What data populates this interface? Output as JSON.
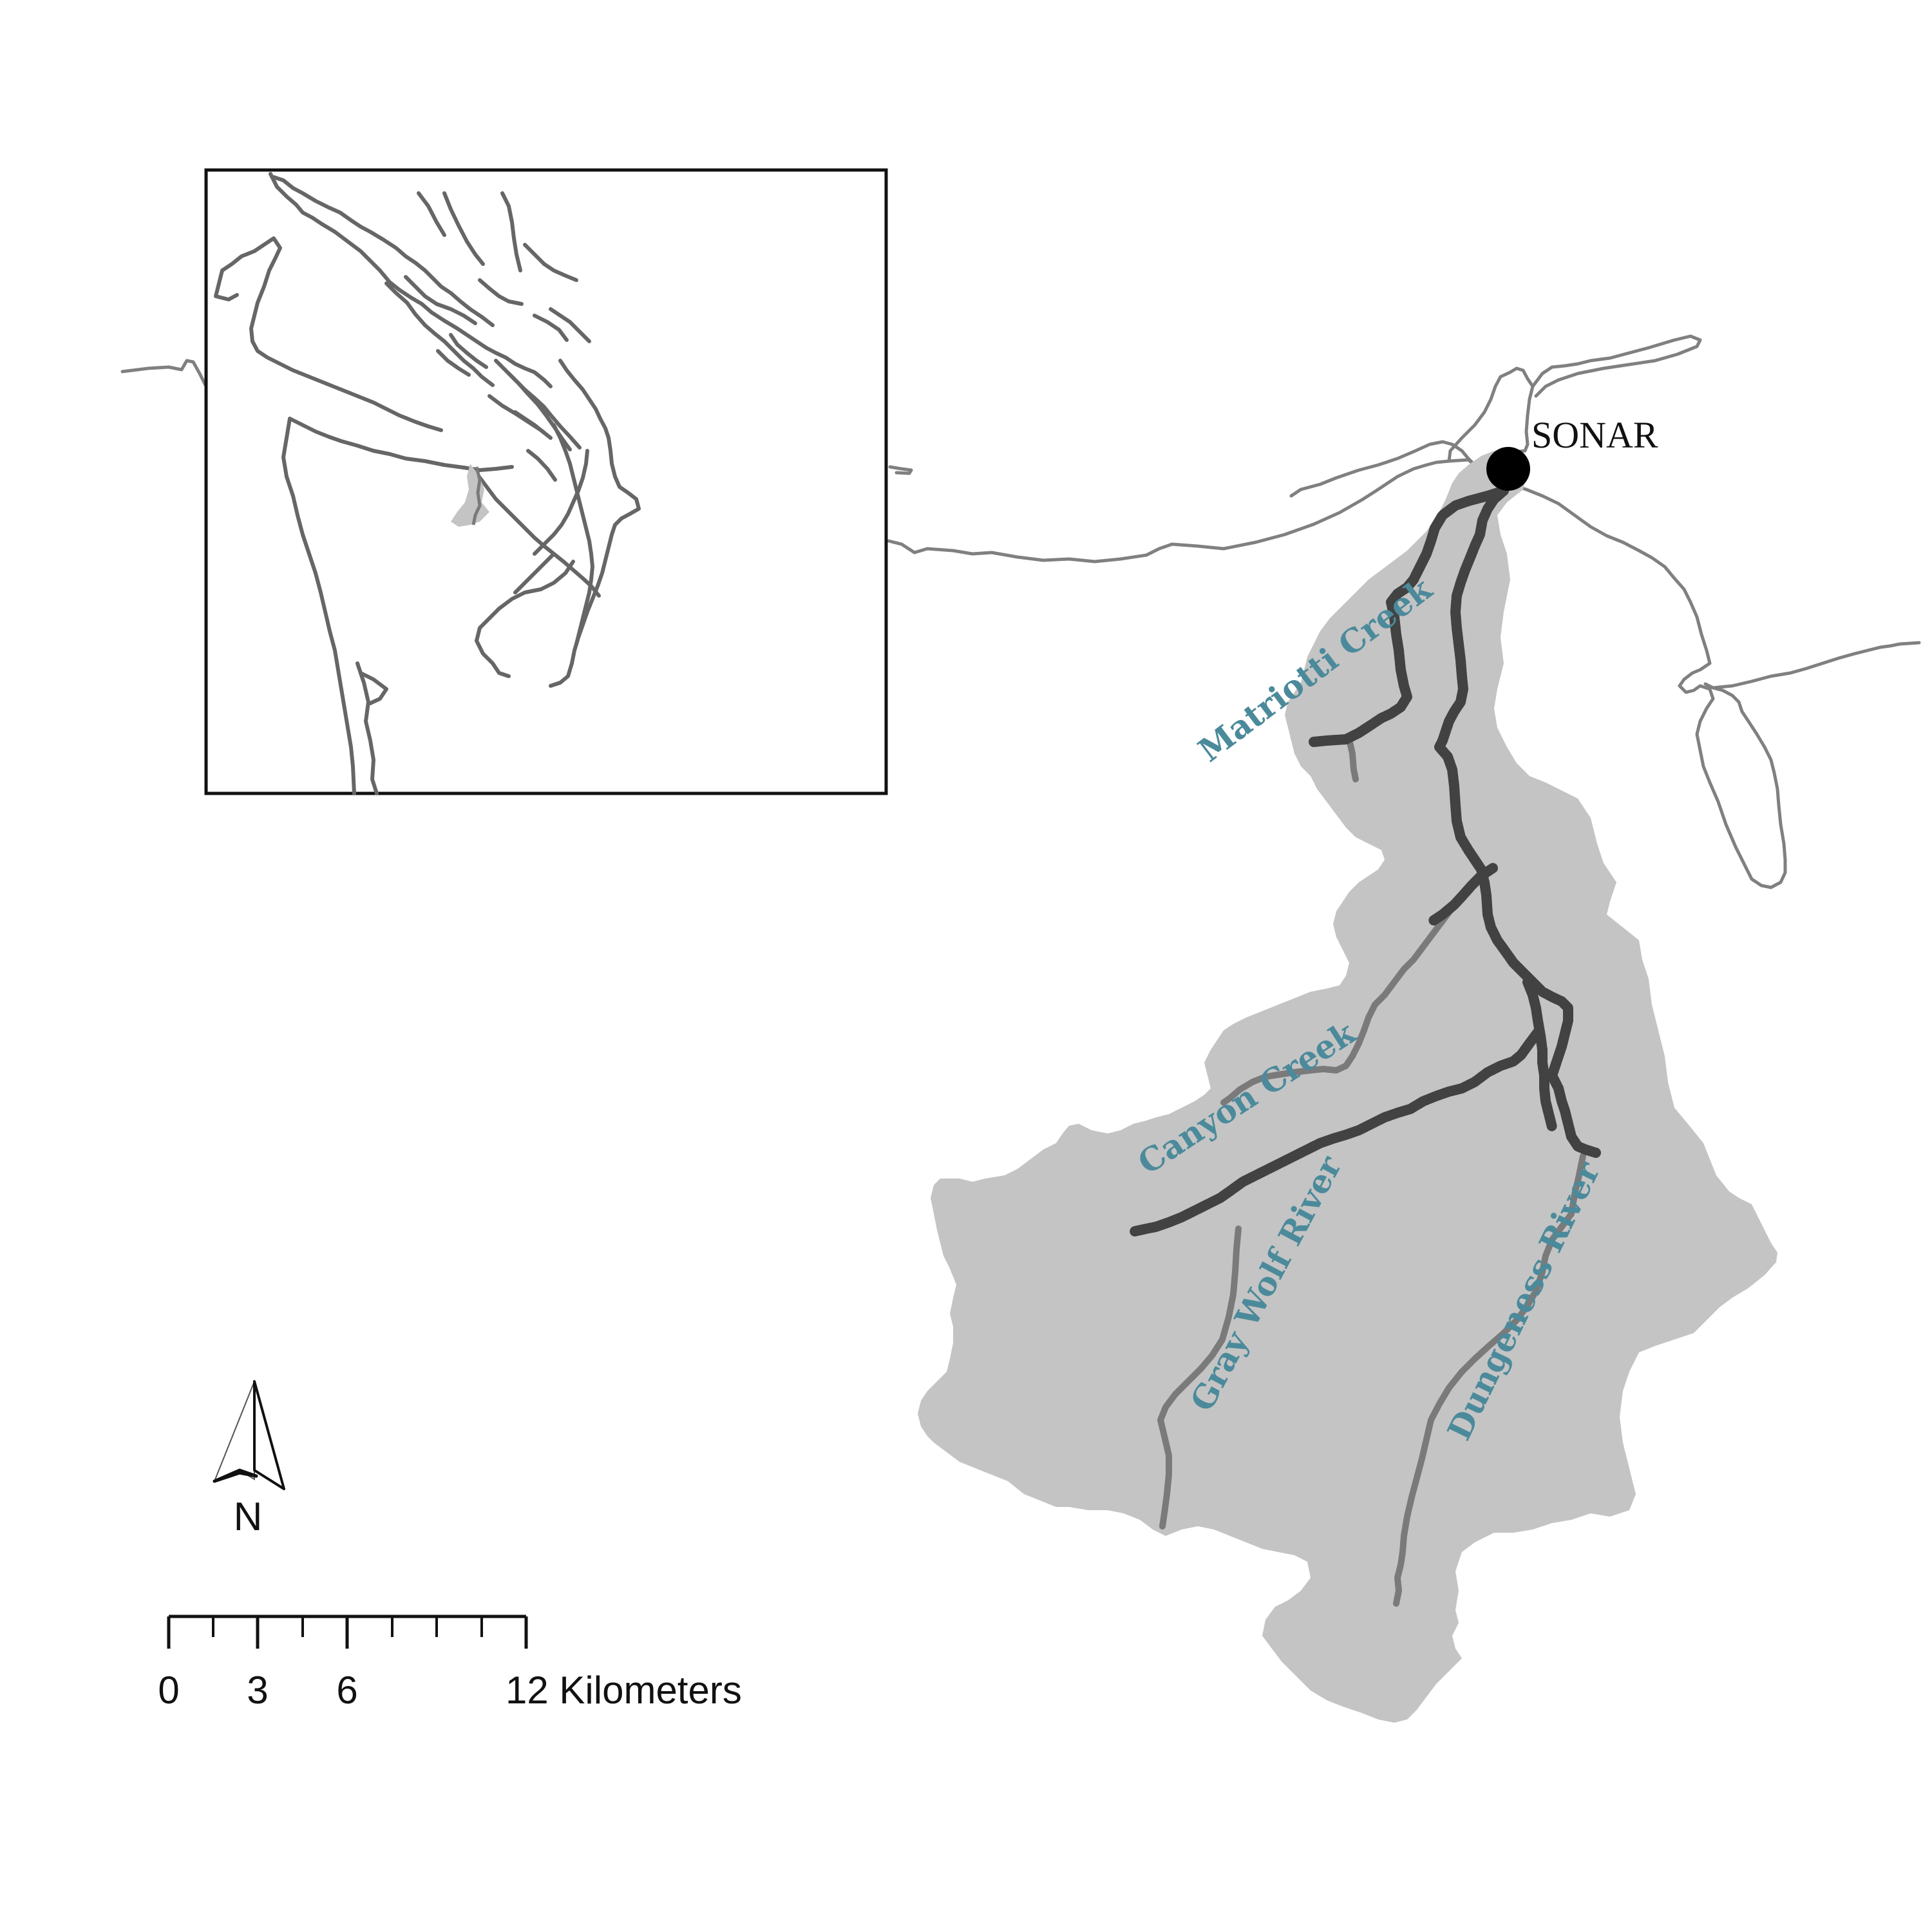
{
  "map": {
    "site_label": "SONAR",
    "rivers": {
      "matriotti": "Matriotti Creek",
      "canyon": "Canyon Creek",
      "graywolf": "Gray Wolf River",
      "dungeness": "Dungeness River"
    },
    "north_arrow": {
      "label": "N",
      "icon": "north-arrow-icon"
    },
    "scale_bar": {
      "tick_labels": [
        "0",
        "3",
        "6",
        "12 Kilometers"
      ]
    },
    "colors": {
      "basin_fill": "#c4c4c4",
      "stream_surveyed": "#424242",
      "stream_other": "#7a7a7a",
      "label_text": "#4b8a9b",
      "coastline": "#808080",
      "site_marker": "#000000"
    }
  }
}
